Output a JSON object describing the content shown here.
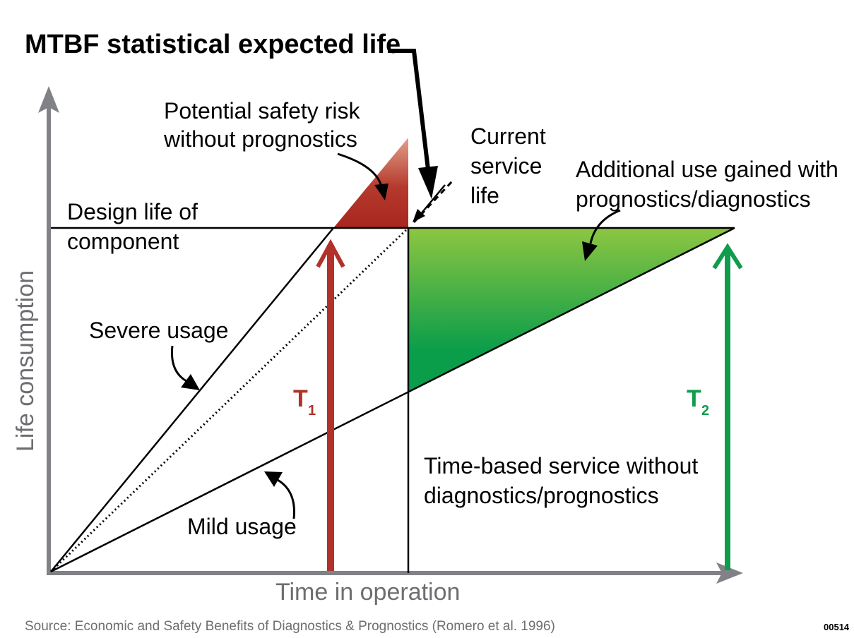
{
  "title": "MTBF statistical expected life",
  "labels": {
    "safety_risk": [
      "Potential safety risk",
      "without prognostics"
    ],
    "current_service": [
      "Current",
      "service",
      "life"
    ],
    "additional_use": [
      "Additional use gained with",
      "prognostics/diagnostics"
    ],
    "design_life": [
      "Design life of",
      "component"
    ],
    "severe": "Severe usage",
    "mild": "Mild usage",
    "time_based": [
      "Time-based service without",
      "diagnostics/prognostics"
    ],
    "t1": "T",
    "t1_sub": "1",
    "t2": "T",
    "t2_sub": "2"
  },
  "axes": {
    "x_label": "Time in operation",
    "y_label": "Life consumption"
  },
  "source": "Source: Economic and Safety Benefits of Diagnostics & Prognostics (Romero et al. 1996)",
  "figure_code": "00514",
  "colors": {
    "axis": "#808285",
    "t1": "#b0322a",
    "t2": "#0f9d4d",
    "risk_top": "#e2a08b",
    "risk_bottom": "#a8261f",
    "gain_top": "#8dc641",
    "gain_bottom": "#0a9d4a"
  }
}
